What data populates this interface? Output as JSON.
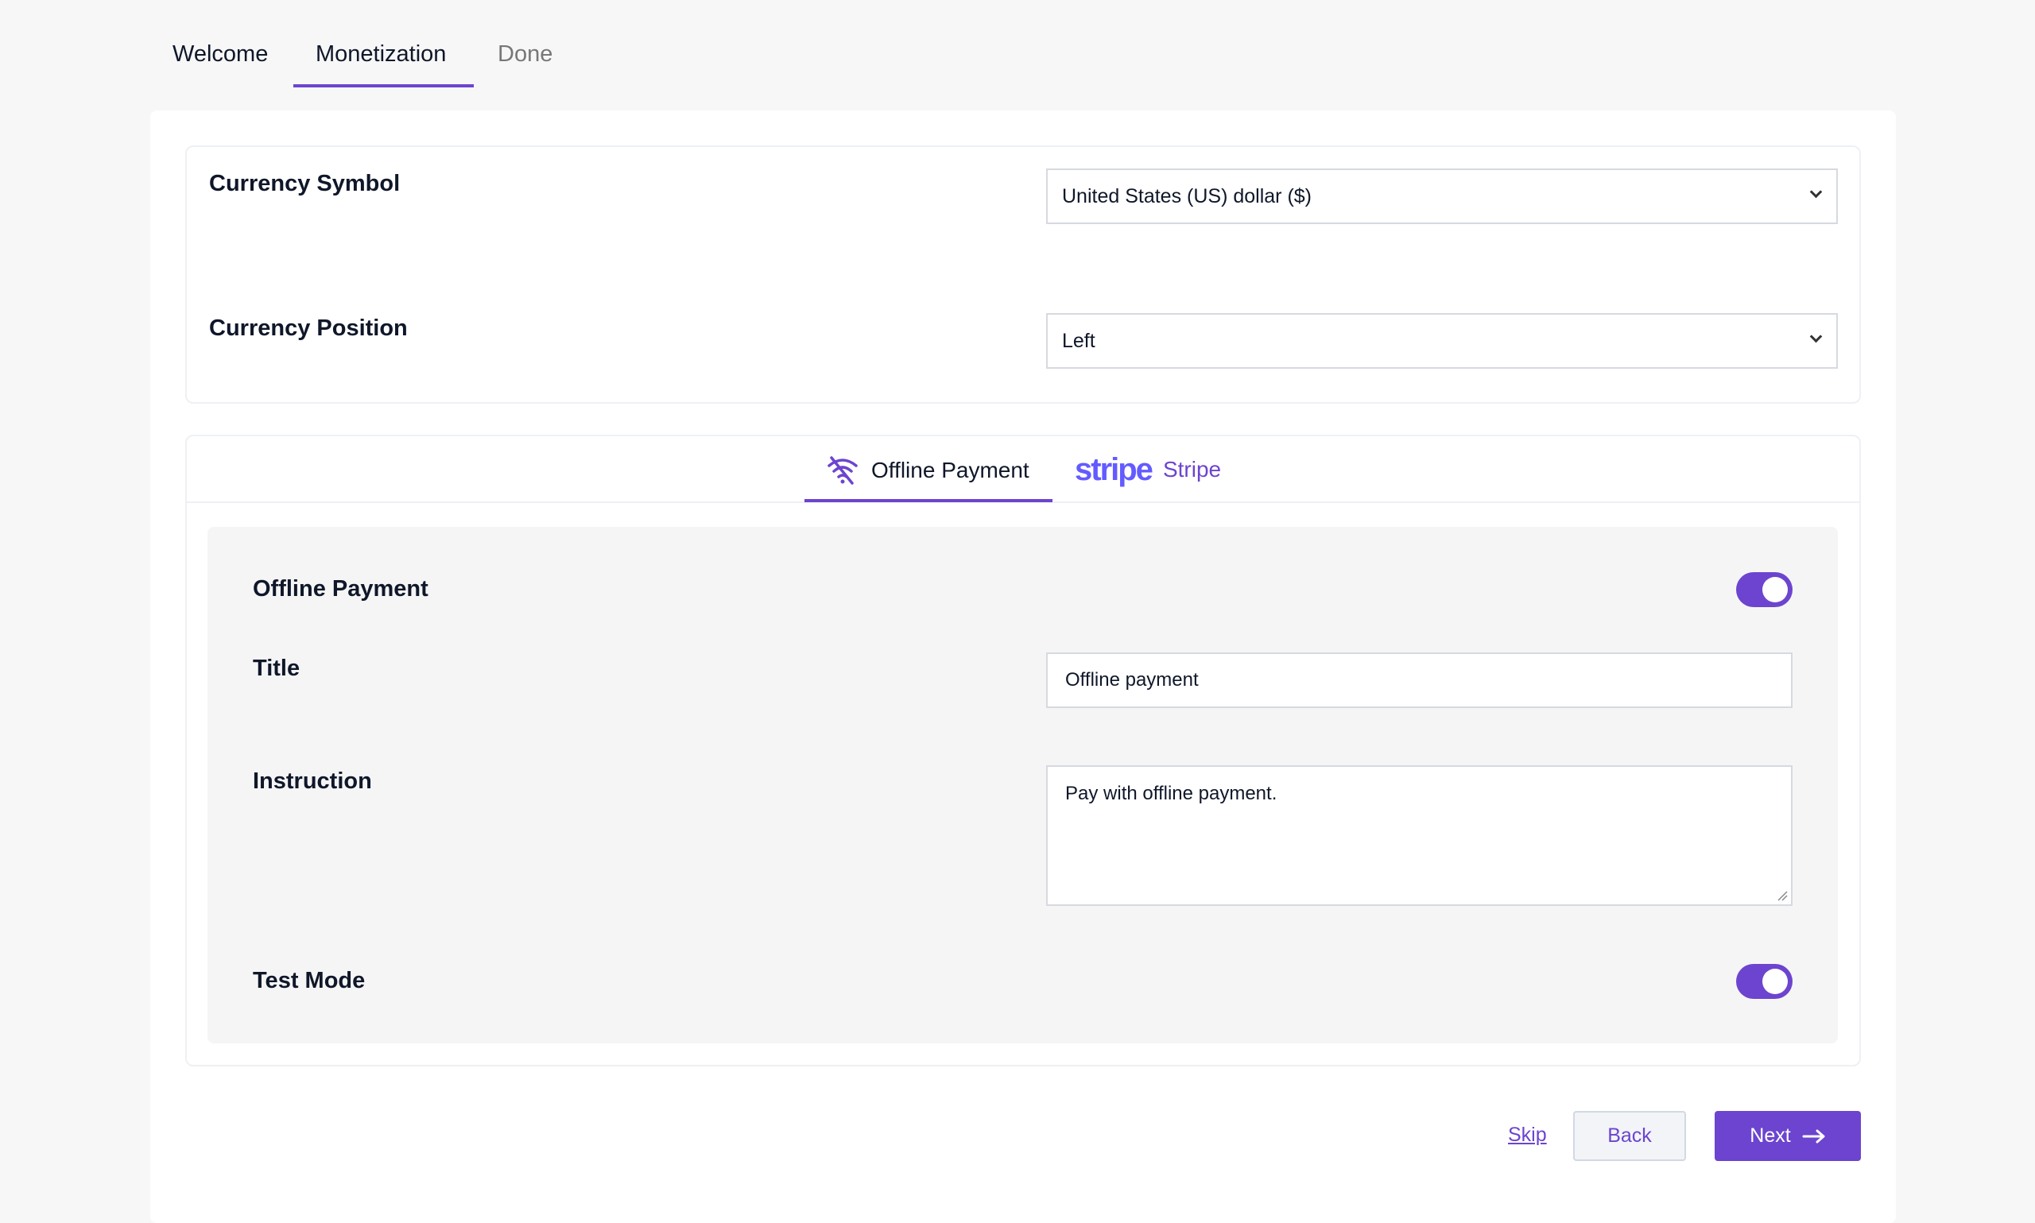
{
  "steps": [
    {
      "label": "Welcome"
    },
    {
      "label": "Monetization",
      "active": true
    },
    {
      "label": "Done"
    }
  ],
  "currency": {
    "symbol_label": "Currency Symbol",
    "symbol_value": "United States (US) dollar ($)",
    "position_label": "Currency Position",
    "position_value": "Left"
  },
  "payment_tabs": {
    "offline": "Offline Payment",
    "stripe_logo": "stripe",
    "stripe": "Stripe"
  },
  "offline": {
    "enable_label": "Offline Payment",
    "enabled": true,
    "title_label": "Title",
    "title_value": "Offline payment",
    "instruction_label": "Instruction",
    "instruction_value": "Pay with offline payment.",
    "test_mode_label": "Test Mode",
    "test_mode": true
  },
  "footer": {
    "skip": "Skip",
    "back": "Back",
    "next": "Next"
  },
  "colors": {
    "accent": "#6c44cf",
    "stripe": "#635bff"
  }
}
